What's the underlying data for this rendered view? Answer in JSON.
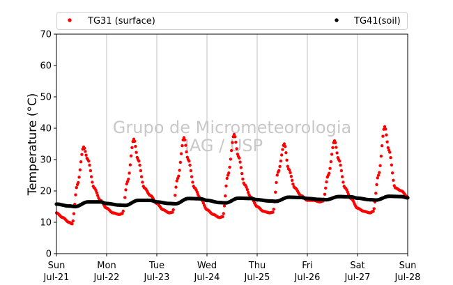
{
  "chart_data": {
    "type": "scatter",
    "ylabel": "Temperature (°C)",
    "xlabel": "",
    "ylim": [
      0,
      70
    ],
    "yticks": [
      0,
      10,
      20,
      30,
      40,
      50,
      60,
      70
    ],
    "xlim": [
      "2024-07-21",
      "2024-07-28"
    ],
    "x_ticks": [
      {
        "day": "Sun",
        "date": "Jul-21"
      },
      {
        "day": "Mon",
        "date": "Jul-22"
      },
      {
        "day": "Tue",
        "date": "Jul-23"
      },
      {
        "day": "Wed",
        "date": "Jul-24"
      },
      {
        "day": "Thu",
        "date": "Jul-25"
      },
      {
        "day": "Fri",
        "date": "Jul-26"
      },
      {
        "day": "Sat",
        "date": "Jul-27"
      },
      {
        "day": "Sun",
        "date": "Jul-28"
      }
    ],
    "grid": "vertical",
    "legend_placement": "top",
    "watermark": [
      "Grupo de Micrometeorologia",
      "IAG / USP"
    ],
    "series": [
      {
        "name": "TG31 (surface)",
        "color": "#ff0000",
        "x": [
          "2024-07-21 00:00",
          "2024-07-21 03:00",
          "2024-07-21 06:00",
          "2024-07-21 07:30",
          "2024-07-21 10:00",
          "2024-07-21 13:00",
          "2024-07-21 15:00",
          "2024-07-21 18:00",
          "2024-07-21 21:00",
          "2024-07-22 00:00",
          "2024-07-22 03:00",
          "2024-07-22 06:00",
          "2024-07-22 07:30",
          "2024-07-22 10:00",
          "2024-07-22 13:00",
          "2024-07-22 15:00",
          "2024-07-22 18:00",
          "2024-07-22 21:00",
          "2024-07-23 00:00",
          "2024-07-23 03:00",
          "2024-07-23 06:00",
          "2024-07-23 07:30",
          "2024-07-23 10:00",
          "2024-07-23 13:00",
          "2024-07-23 15:00",
          "2024-07-23 18:00",
          "2024-07-23 21:00",
          "2024-07-24 00:00",
          "2024-07-24 03:00",
          "2024-07-24 06:00",
          "2024-07-24 07:30",
          "2024-07-24 10:00",
          "2024-07-24 13:00",
          "2024-07-24 15:00",
          "2024-07-24 18:00",
          "2024-07-24 21:00",
          "2024-07-25 00:00",
          "2024-07-25 03:00",
          "2024-07-25 06:00",
          "2024-07-25 07:30",
          "2024-07-25 10:00",
          "2024-07-25 13:00",
          "2024-07-25 15:00",
          "2024-07-25 18:00",
          "2024-07-25 21:00",
          "2024-07-26 00:00",
          "2024-07-26 03:00",
          "2024-07-26 06:00",
          "2024-07-26 07:30",
          "2024-07-26 10:00",
          "2024-07-26 13:00",
          "2024-07-26 15:00",
          "2024-07-26 18:00",
          "2024-07-26 21:00",
          "2024-07-27 00:00",
          "2024-07-27 03:00",
          "2024-07-27 06:00",
          "2024-07-27 07:30",
          "2024-07-27 10:00",
          "2024-07-27 13:00",
          "2024-07-27 15:00",
          "2024-07-27 18:00",
          "2024-07-27 21:00",
          "2024-07-28 00:00"
        ],
        "y": [
          13,
          11.5,
          10,
          9.5,
          22,
          34,
          30,
          21,
          17,
          14.5,
          13,
          12.5,
          12.8,
          23,
          36.5,
          30,
          21,
          18.5,
          16,
          14,
          13,
          13.2,
          24,
          37,
          30,
          21,
          17.5,
          14,
          12.5,
          11.5,
          11.8,
          25,
          38,
          31,
          22,
          18,
          15,
          13.5,
          13,
          13.2,
          26,
          35,
          27,
          21,
          18.5,
          17,
          17,
          16.5,
          16.8,
          25,
          36,
          30,
          21,
          17.5,
          14.5,
          13.5,
          13,
          13.5,
          25,
          40.5,
          33,
          21,
          20,
          18
        ]
      },
      {
        "name": "TG41(soil)",
        "color": "#000000",
        "x": [
          "2024-07-21 00:00",
          "2024-07-21 06:00",
          "2024-07-21 09:00",
          "2024-07-21 15:00",
          "2024-07-21 21:00",
          "2024-07-22 00:00",
          "2024-07-22 06:00",
          "2024-07-22 09:00",
          "2024-07-22 15:00",
          "2024-07-22 21:00",
          "2024-07-23 00:00",
          "2024-07-23 06:00",
          "2024-07-23 09:00",
          "2024-07-23 15:00",
          "2024-07-23 21:00",
          "2024-07-24 00:00",
          "2024-07-24 06:00",
          "2024-07-24 09:00",
          "2024-07-24 15:00",
          "2024-07-24 21:00",
          "2024-07-25 00:00",
          "2024-07-25 06:00",
          "2024-07-25 09:00",
          "2024-07-25 15:00",
          "2024-07-25 21:00",
          "2024-07-26 00:00",
          "2024-07-26 06:00",
          "2024-07-26 09:00",
          "2024-07-26 15:00",
          "2024-07-26 21:00",
          "2024-07-27 00:00",
          "2024-07-27 06:00",
          "2024-07-27 09:00",
          "2024-07-27 15:00",
          "2024-07-27 21:00",
          "2024-07-28 00:00"
        ],
        "y": [
          15.8,
          15.2,
          15.0,
          16.5,
          16.5,
          16.0,
          15.5,
          15.4,
          17.0,
          17.0,
          16.5,
          16.0,
          15.9,
          17.6,
          17.5,
          17.0,
          16.3,
          16.2,
          17.7,
          17.6,
          17.2,
          16.8,
          16.7,
          18.0,
          17.9,
          17.6,
          17.3,
          17.2,
          18.2,
          18.1,
          17.7,
          17.2,
          17.1,
          18.3,
          18.2,
          17.8
        ]
      }
    ]
  }
}
